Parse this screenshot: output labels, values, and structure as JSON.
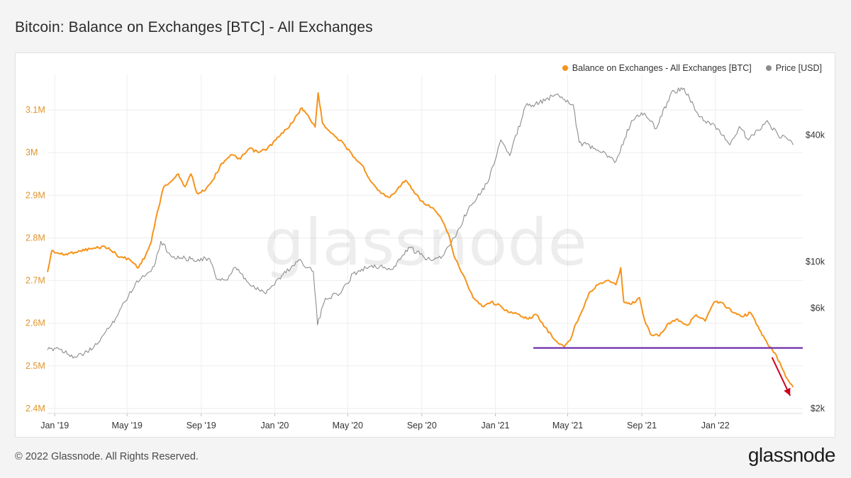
{
  "header": {
    "title": "Bitcoin: Balance on Exchanges [BTC] - All Exchanges"
  },
  "footer": {
    "copyright": "© 2022 Glassnode. All Rights Reserved.",
    "logo_text": "glassnode"
  },
  "watermark": "glassnode",
  "colors": {
    "balance": "#f7931a",
    "price": "#8c8c8c",
    "support_line": "#6f2da8",
    "arrow": "#d0021b",
    "grid": "#eeeeee"
  },
  "chart_data": {
    "type": "line",
    "title": "Bitcoin: Balance on Exchanges [BTC] - All Exchanges",
    "legend_position": "top-right",
    "grid": true,
    "x_range": [
      "2018-12-20",
      "2022-05-26"
    ],
    "x_ticks": [
      "Jan '19",
      "May '19",
      "Sep '19",
      "Jan '20",
      "May '20",
      "Sep '20",
      "Jan '21",
      "May '21",
      "Sep '21",
      "Jan '22"
    ],
    "y_left": {
      "label": "",
      "range": [
        2.4,
        3.15
      ],
      "ticks": [
        "2.4M",
        "2.5M",
        "2.6M",
        "2.7M",
        "2.8M",
        "2.9M",
        "3M",
        "3.1M"
      ]
    },
    "y_right": {
      "label": "",
      "scale": "log",
      "ticks": [
        "$2k",
        "$6k",
        "$10k",
        "$40k"
      ]
    },
    "series": [
      {
        "name": "Balance on Exchanges - All Exchanges [BTC]",
        "axis": "left",
        "color": "#f7931a",
        "points": [
          [
            "2018-12-20",
            2.72
          ],
          [
            "2018-12-27",
            2.77
          ],
          [
            "2019-01-15",
            2.76
          ],
          [
            "2019-02-10",
            2.77
          ],
          [
            "2019-03-05",
            2.775
          ],
          [
            "2019-03-25",
            2.78
          ],
          [
            "2019-04-05",
            2.77
          ],
          [
            "2019-04-20",
            2.755
          ],
          [
            "2019-05-05",
            2.75
          ],
          [
            "2019-05-20",
            2.73
          ],
          [
            "2019-06-01",
            2.76
          ],
          [
            "2019-06-10",
            2.79
          ],
          [
            "2019-06-20",
            2.86
          ],
          [
            "2019-07-01",
            2.92
          ],
          [
            "2019-07-15",
            2.935
          ],
          [
            "2019-07-25",
            2.95
          ],
          [
            "2019-08-05",
            2.92
          ],
          [
            "2019-08-15",
            2.95
          ],
          [
            "2019-08-25",
            2.905
          ],
          [
            "2019-09-05",
            2.91
          ],
          [
            "2019-09-20",
            2.935
          ],
          [
            "2019-10-05",
            2.975
          ],
          [
            "2019-10-20",
            2.995
          ],
          [
            "2019-11-05",
            2.985
          ],
          [
            "2019-11-20",
            3.01
          ],
          [
            "2019-12-05",
            3.0
          ],
          [
            "2019-12-20",
            3.01
          ],
          [
            "2020-01-10",
            3.04
          ],
          [
            "2020-01-30",
            3.07
          ],
          [
            "2020-02-15",
            3.105
          ],
          [
            "2020-02-28",
            3.08
          ],
          [
            "2020-03-08",
            3.06
          ],
          [
            "2020-03-13",
            3.14
          ],
          [
            "2020-03-20",
            3.07
          ],
          [
            "2020-04-05",
            3.045
          ],
          [
            "2020-04-25",
            3.02
          ],
          [
            "2020-05-10",
            2.99
          ],
          [
            "2020-05-25",
            2.97
          ],
          [
            "2020-06-10",
            2.93
          ],
          [
            "2020-06-25",
            2.905
          ],
          [
            "2020-07-10",
            2.895
          ],
          [
            "2020-07-25",
            2.92
          ],
          [
            "2020-08-05",
            2.935
          ],
          [
            "2020-08-20",
            2.905
          ],
          [
            "2020-09-05",
            2.88
          ],
          [
            "2020-09-20",
            2.87
          ],
          [
            "2020-10-05",
            2.84
          ],
          [
            "2020-10-15",
            2.81
          ],
          [
            "2020-10-25",
            2.755
          ],
          [
            "2020-11-10",
            2.71
          ],
          [
            "2020-11-25",
            2.66
          ],
          [
            "2020-12-10",
            2.64
          ],
          [
            "2020-12-25",
            2.65
          ],
          [
            "2021-01-10",
            2.64
          ],
          [
            "2021-01-25",
            2.625
          ],
          [
            "2021-02-10",
            2.62
          ],
          [
            "2021-02-25",
            2.61
          ],
          [
            "2021-03-10",
            2.62
          ],
          [
            "2021-03-25",
            2.59
          ],
          [
            "2021-04-10",
            2.56
          ],
          [
            "2021-04-25",
            2.545
          ],
          [
            "2021-05-05",
            2.56
          ],
          [
            "2021-05-15",
            2.6
          ],
          [
            "2021-05-25",
            2.63
          ],
          [
            "2021-06-05",
            2.67
          ],
          [
            "2021-06-20",
            2.69
          ],
          [
            "2021-07-05",
            2.7
          ],
          [
            "2021-07-20",
            2.69
          ],
          [
            "2021-07-28",
            2.73
          ],
          [
            "2021-08-02",
            2.65
          ],
          [
            "2021-08-15",
            2.645
          ],
          [
            "2021-08-28",
            2.66
          ],
          [
            "2021-09-05",
            2.61
          ],
          [
            "2021-09-15",
            2.575
          ],
          [
            "2021-09-30",
            2.57
          ],
          [
            "2021-10-15",
            2.6
          ],
          [
            "2021-10-30",
            2.61
          ],
          [
            "2021-11-15",
            2.595
          ],
          [
            "2021-11-30",
            2.62
          ],
          [
            "2021-12-15",
            2.605
          ],
          [
            "2021-12-30",
            2.65
          ],
          [
            "2022-01-15",
            2.645
          ],
          [
            "2022-01-30",
            2.625
          ],
          [
            "2022-02-15",
            2.615
          ],
          [
            "2022-02-28",
            2.625
          ],
          [
            "2022-03-15",
            2.585
          ],
          [
            "2022-03-31",
            2.545
          ],
          [
            "2022-04-10",
            2.53
          ],
          [
            "2022-04-20",
            2.5
          ],
          [
            "2022-04-30",
            2.47
          ],
          [
            "2022-05-10",
            2.45
          ]
        ]
      },
      {
        "name": "Price [USD]",
        "axis": "right",
        "color": "#8c8c8c",
        "points": [
          [
            "2018-12-20",
            3800
          ],
          [
            "2019-01-05",
            3900
          ],
          [
            "2019-02-05",
            3500
          ],
          [
            "2019-03-05",
            3850
          ],
          [
            "2019-04-05",
            5000
          ],
          [
            "2019-05-15",
            7900
          ],
          [
            "2019-06-15",
            9500
          ],
          [
            "2019-06-26",
            12500
          ],
          [
            "2019-07-15",
            10500
          ],
          [
            "2019-08-15",
            10300
          ],
          [
            "2019-09-15",
            10300
          ],
          [
            "2019-09-26",
            8300
          ],
          [
            "2019-10-15",
            8200
          ],
          [
            "2019-10-28",
            9400
          ],
          [
            "2019-11-20",
            7800
          ],
          [
            "2019-12-15",
            7100
          ],
          [
            "2020-01-15",
            8700
          ],
          [
            "2020-02-10",
            10200
          ],
          [
            "2020-03-05",
            9000
          ],
          [
            "2020-03-12",
            5000
          ],
          [
            "2020-03-25",
            6700
          ],
          [
            "2020-04-20",
            7100
          ],
          [
            "2020-05-10",
            8800
          ],
          [
            "2020-06-10",
            9600
          ],
          [
            "2020-07-15",
            9200
          ],
          [
            "2020-08-10",
            11700
          ],
          [
            "2020-09-10",
            10300
          ],
          [
            "2020-10-05",
            10600
          ],
          [
            "2020-10-25",
            13000
          ],
          [
            "2020-11-20",
            18500
          ],
          [
            "2020-12-20",
            24000
          ],
          [
            "2021-01-10",
            38000
          ],
          [
            "2021-01-25",
            32000
          ],
          [
            "2021-02-20",
            55000
          ],
          [
            "2021-03-15",
            57000
          ],
          [
            "2021-04-14",
            63000
          ],
          [
            "2021-05-10",
            56000
          ],
          [
            "2021-05-20",
            37000
          ],
          [
            "2021-06-20",
            34000
          ],
          [
            "2021-07-20",
            30000
          ],
          [
            "2021-08-15",
            47000
          ],
          [
            "2021-09-05",
            51000
          ],
          [
            "2021-09-25",
            43000
          ],
          [
            "2021-10-20",
            64000
          ],
          [
            "2021-11-10",
            67000
          ],
          [
            "2021-12-05",
            49000
          ],
          [
            "2022-01-05",
            43000
          ],
          [
            "2022-01-25",
            36000
          ],
          [
            "2022-02-10",
            44000
          ],
          [
            "2022-02-25",
            38000
          ],
          [
            "2022-03-28",
            47000
          ],
          [
            "2022-04-15",
            40000
          ],
          [
            "2022-04-30",
            38500
          ],
          [
            "2022-05-10",
            36000
          ]
        ]
      }
    ],
    "annotations": [
      {
        "type": "horizontal_line",
        "y": 2.542,
        "x_from": "2021-03-05",
        "x_to": "2022-05-26",
        "color": "#6f2da8"
      },
      {
        "type": "arrow",
        "from": [
          "2022-04-05",
          2.52
        ],
        "to": [
          "2022-05-05",
          2.43
        ],
        "color": "#d0021b"
      }
    ]
  }
}
